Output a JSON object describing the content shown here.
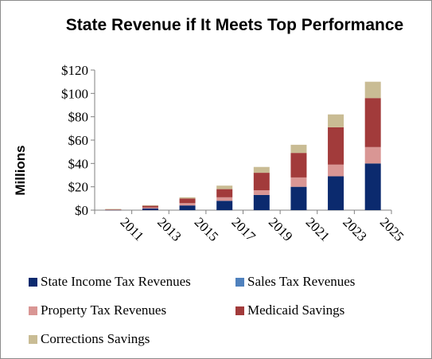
{
  "chart_data": {
    "type": "bar",
    "stacked": true,
    "title": "State Revenue if It Meets Top Performance",
    "ylabel": "Millions",
    "xlabel": "",
    "ylim": [
      0,
      120
    ],
    "yticks": [
      "$0",
      "$20",
      "$40",
      "$60",
      "$80",
      "$100",
      "$120"
    ],
    "yticks_values": [
      0,
      20,
      40,
      60,
      80,
      100,
      120
    ],
    "categories": [
      "2011",
      "2013",
      "2015",
      "2017",
      "2019",
      "2021",
      "2023",
      "2025"
    ],
    "grid": false,
    "legend_position": "bottom",
    "series": [
      {
        "name": "State Income Tax Revenues",
        "color": "#0b2a6e",
        "values": [
          0.3,
          1.5,
          4,
          8,
          13,
          20,
          29,
          40
        ]
      },
      {
        "name": "Sales Tax Revenues",
        "color": "#4f81bd",
        "values": [
          0,
          0,
          0,
          0,
          0,
          0,
          0,
          0
        ]
      },
      {
        "name": "Property Tax Revenues",
        "color": "#d99694",
        "values": [
          0.2,
          0.7,
          2,
          3,
          4,
          8,
          10,
          14
        ]
      },
      {
        "name": "Medicaid Savings",
        "color": "#a23b3b",
        "values": [
          0.3,
          1.5,
          4,
          7,
          15,
          21,
          32,
          42
        ]
      },
      {
        "name": "Corrections Savings",
        "color": "#c9bc94",
        "values": [
          0.2,
          0.5,
          1,
          3,
          5,
          7,
          11,
          14
        ]
      }
    ]
  }
}
